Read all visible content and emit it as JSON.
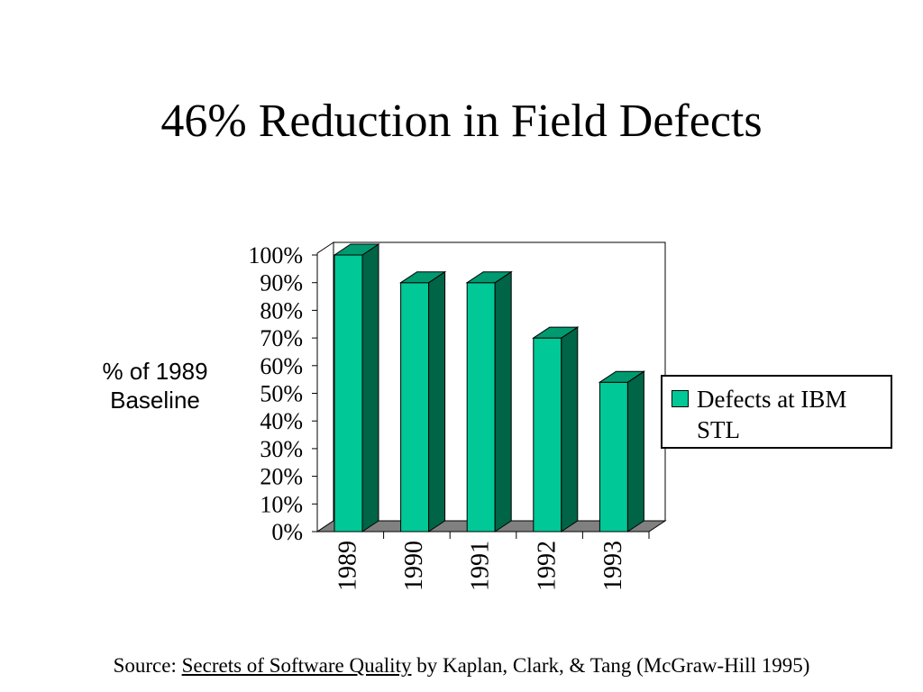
{
  "slide": {
    "title": "46% Reduction in Field Defects",
    "source_prefix": "Source: ",
    "source_book": "Secrets of Software Quality",
    "source_suffix": "  by Kaplan, Clark, & Tang (McGraw-Hill 1995)"
  },
  "chart_data": {
    "type": "bar",
    "style": "3d",
    "ylabel_line1": "% of 1989",
    "ylabel_line2": "Baseline",
    "categories": [
      "1989",
      "1990",
      "1991",
      "1992",
      "1993"
    ],
    "series": [
      {
        "name": "Defects at IBM STL",
        "values": [
          100,
          90,
          90,
          70,
          54
        ]
      }
    ],
    "ylim": [
      0,
      100
    ],
    "yticks": [
      "0%",
      "10%",
      "20%",
      "30%",
      "40%",
      "50%",
      "60%",
      "70%",
      "80%",
      "90%",
      "100%"
    ],
    "legend_position": "right",
    "grid": false,
    "colors": {
      "bar_front": "#00c896",
      "bar_side": "#006446",
      "bar_top": "#009a70",
      "floor": "#808080"
    }
  }
}
